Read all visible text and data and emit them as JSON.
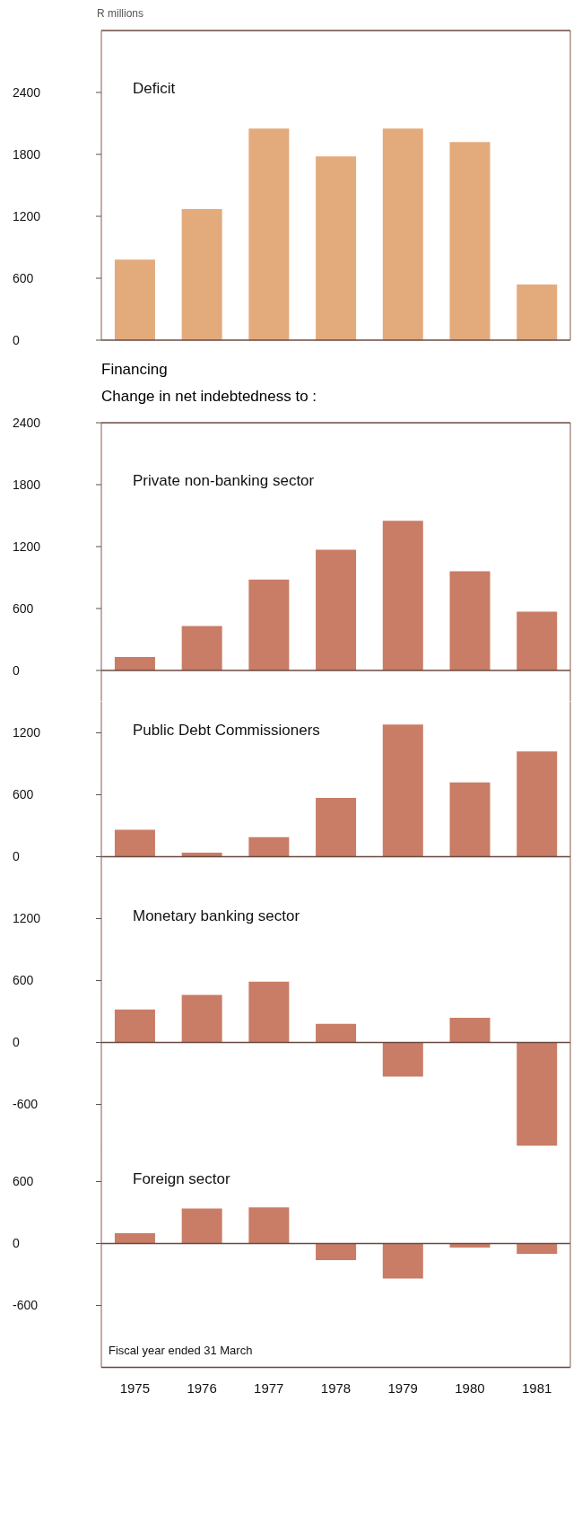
{
  "chart_data": [
    {
      "type": "bar",
      "title": "Deficit",
      "ylabel": "R millions",
      "categories": [
        null,
        null,
        null,
        null,
        null,
        null,
        null
      ],
      "values": [
        780,
        1270,
        2050,
        1780,
        2050,
        1920,
        540
      ],
      "color": "#e3aa7c",
      "ylim": [
        0,
        3000
      ],
      "yticks": [
        0,
        600,
        1200,
        1800,
        2400
      ],
      "tick_labels": "y"
    },
    {
      "type": "bar",
      "title": "Private non-banking sector",
      "annotations": [
        "Financing",
        "Change in net indebtedness to :"
      ],
      "categories": [
        null,
        null,
        null,
        null,
        null,
        null,
        null
      ],
      "values": [
        130,
        430,
        880,
        1170,
        1450,
        960,
        570
      ],
      "color": "#c97c66",
      "ylim": [
        -300,
        2400
      ],
      "yticks": [
        0,
        600,
        1200,
        1800,
        2400
      ],
      "tick_labels": "y",
      "ref_lines": [
        {
          "axis": "y",
          "value": 0,
          "color": "#6a4a40"
        }
      ]
    },
    {
      "type": "bar",
      "title": "Public Debt Commissioners",
      "categories": [
        null,
        null,
        null,
        null,
        null,
        null,
        null
      ],
      "values": [
        260,
        40,
        190,
        570,
        1280,
        720,
        1020
      ],
      "color": "#c97c66",
      "ylim": [
        -300,
        1500
      ],
      "yticks": [
        0,
        600,
        1200
      ],
      "tick_labels": "y",
      "ref_lines": [
        {
          "axis": "y",
          "value": 0,
          "color": "#6a4a40"
        }
      ]
    },
    {
      "type": "bar",
      "title": "Monetary banking sector",
      "categories": [
        null,
        null,
        null,
        null,
        null,
        null,
        null
      ],
      "values": [
        320,
        460,
        590,
        180,
        -330,
        240,
        -1000
      ],
      "color": "#c97c66",
      "ylim": [
        -1050,
        1500
      ],
      "yticks": [
        -600,
        0,
        600,
        1200
      ],
      "tick_labels": "y",
      "ref_lines": [
        {
          "axis": "y",
          "value": 0,
          "color": "#6a4a40"
        }
      ]
    },
    {
      "type": "bar",
      "title": "Foreign sector",
      "annotations": [
        "Fiscal year ended 31 March"
      ],
      "categories": [
        "1975",
        "1976",
        "1977",
        "1978",
        "1979",
        "1980",
        "1981"
      ],
      "values": [
        100,
        340,
        350,
        -160,
        -340,
        -40,
        -100
      ],
      "color": "#c97c66",
      "ylim": [
        -1200,
        900
      ],
      "yticks": [
        -600,
        0,
        600
      ],
      "ref_lines": [
        {
          "axis": "y",
          "value": 0,
          "color": "#6a4a40"
        }
      ]
    }
  ]
}
